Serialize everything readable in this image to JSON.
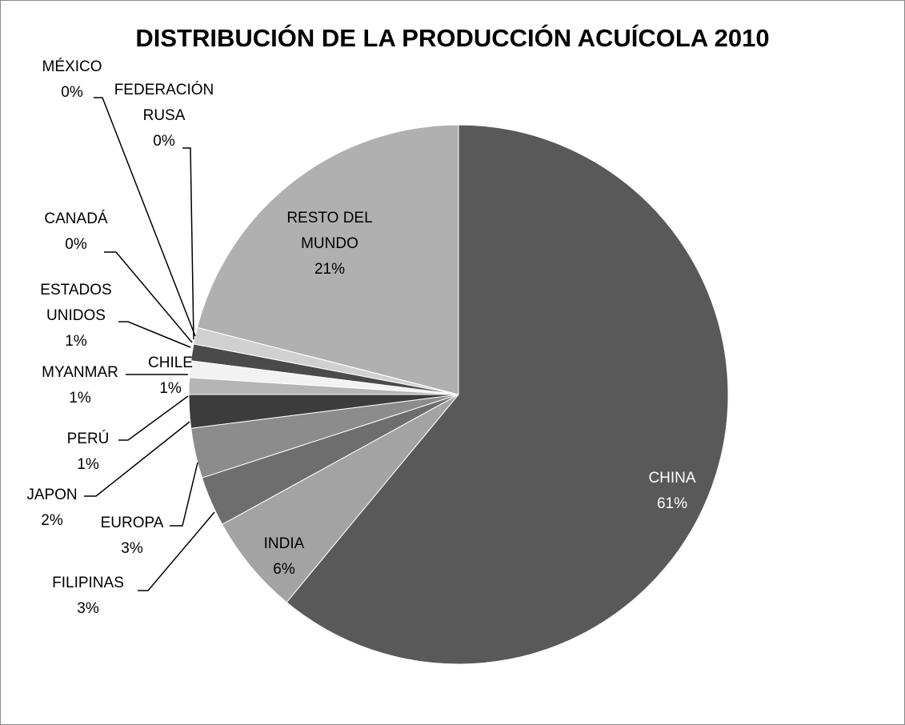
{
  "chart_data": {
    "type": "pie",
    "title": "DISTRIBUCIÓN DE LA PRODUCCIÓN ACUÍCOLA 2010",
    "categories": [
      "CHINA",
      "INDIA",
      "FILIPINAS",
      "EUROPA",
      "JAPON",
      "PERÚ",
      "MYANMAR",
      "CHILE",
      "ESTADOS UNIDOS",
      "CANADÁ",
      "FEDERACIÓN RUSA",
      "MÉXICO",
      "RESTO DEL MUNDO"
    ],
    "values": [
      61,
      6,
      3,
      3,
      2,
      1,
      1,
      1,
      1,
      0,
      0,
      0,
      21
    ],
    "value_labels": [
      "61%",
      "6%",
      "3%",
      "3%",
      "2%",
      "1%",
      "1%",
      "1%",
      "1%",
      "0%",
      "0%",
      "0%",
      "21%"
    ],
    "colors": [
      "#595959",
      "#a3a3a3",
      "#6e6e6e",
      "#8c8c8c",
      "#3c3c3c",
      "#b5b5b5",
      "#f2f2f2",
      "#4a4a4a",
      "#d0d0d0",
      "#7a7a7a",
      "#e0e0e0",
      "#606060",
      "#b0b0b0"
    ]
  }
}
